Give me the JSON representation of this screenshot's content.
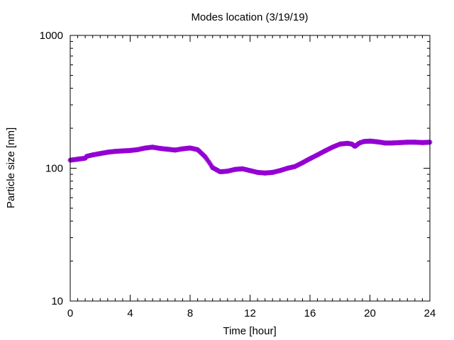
{
  "chart_data": {
    "type": "scatter",
    "title": "Modes location (3/19/19)",
    "xlabel": "Time [hour]",
    "ylabel": "Particle size [nm]",
    "xlim": [
      0,
      24
    ],
    "ylim": [
      10,
      1000
    ],
    "yscale": "log",
    "x_ticks": [
      0,
      4,
      8,
      12,
      16,
      20,
      24
    ],
    "x_tick_labels": [
      "0",
      "4",
      "8",
      "12",
      "16",
      "20",
      "24"
    ],
    "y_ticks": [
      10,
      100,
      1000
    ],
    "y_tick_labels": [
      "10",
      "100",
      "1000"
    ],
    "grid": false,
    "legend": "none",
    "marker": "star",
    "color": "#9400d3",
    "x": [
      0,
      0.5,
      1,
      1.1,
      1.5,
      2,
      2.5,
      3,
      3.5,
      4,
      4.5,
      5,
      5.5,
      6,
      6.5,
      7,
      7.5,
      8,
      8.5,
      9,
      9.5,
      10,
      10.5,
      11,
      11.5,
      12,
      12.5,
      13,
      13.5,
      14,
      14.5,
      15,
      15.5,
      16,
      16.5,
      17,
      17.5,
      18,
      18.5,
      18.8,
      19,
      19.3,
      19.6,
      20,
      20.5,
      21,
      21.5,
      22,
      22.5,
      23,
      23.5,
      24
    ],
    "y": [
      115,
      117,
      119,
      123,
      126,
      129,
      132,
      134,
      135,
      136,
      138,
      142,
      144,
      141,
      139,
      137,
      140,
      142,
      138,
      122,
      101,
      94,
      95,
      98,
      99,
      96,
      93,
      92,
      93,
      96,
      100,
      103,
      110,
      118,
      126,
      135,
      144,
      152,
      154,
      152,
      146,
      155,
      159,
      160,
      158,
      155,
      155,
      156,
      157,
      157,
      156,
      157
    ]
  }
}
